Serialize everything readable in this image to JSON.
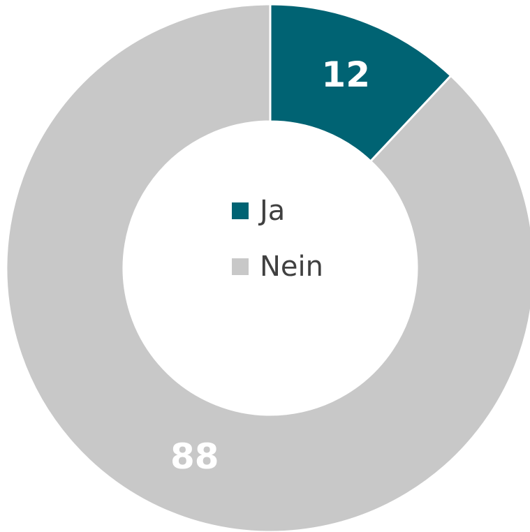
{
  "chart_data": {
    "type": "donut",
    "categories": [
      "Ja",
      "Nein"
    ],
    "values": [
      12,
      88
    ],
    "colors": [
      "#006373",
      "#c8c8c8"
    ],
    "legend": "center"
  }
}
